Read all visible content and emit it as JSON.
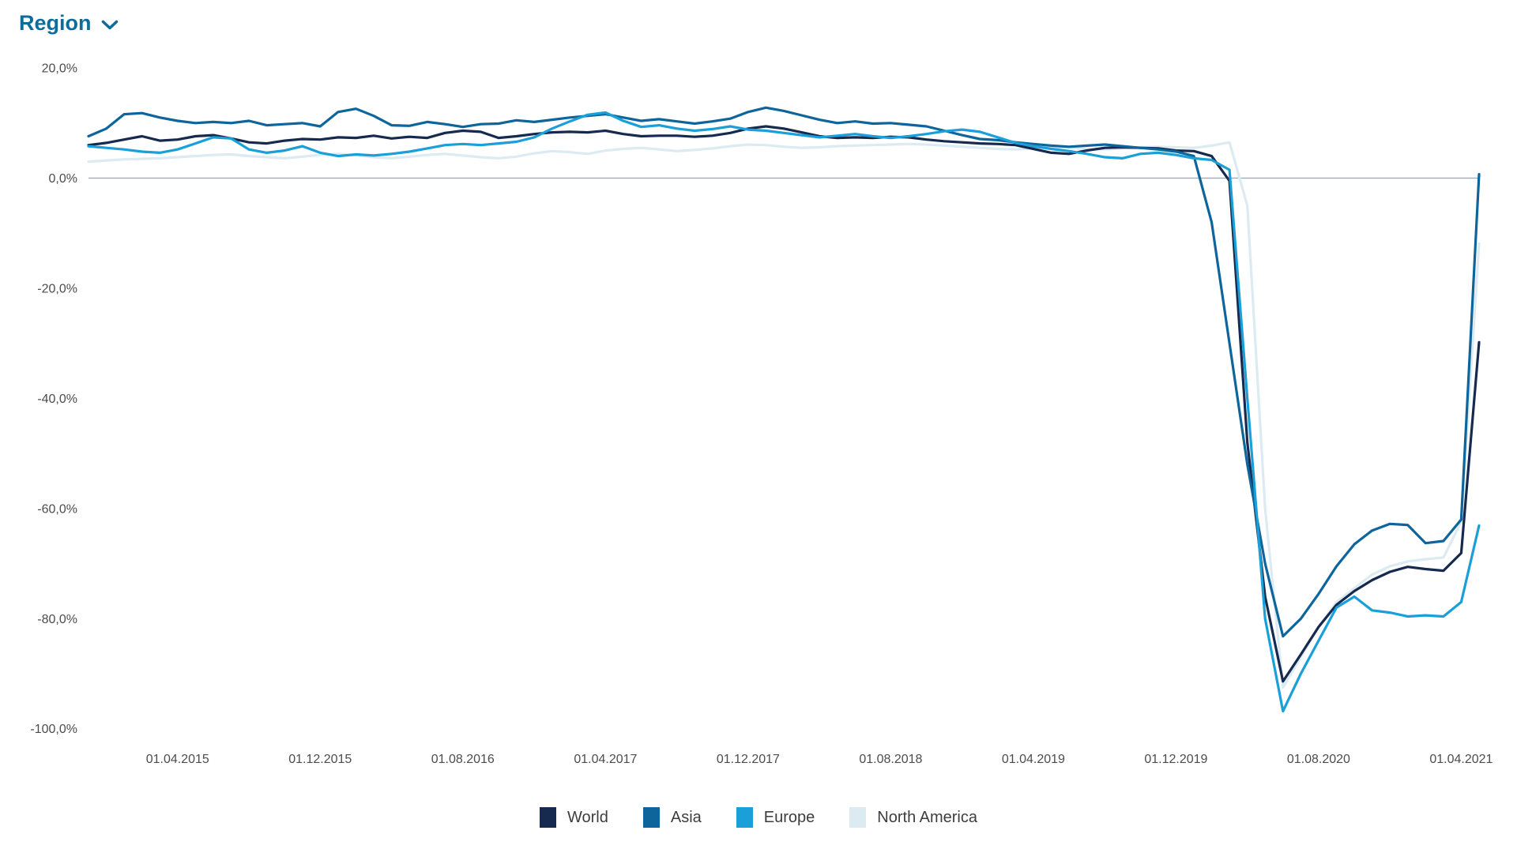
{
  "header": {
    "title": "Region",
    "title_color": "#0c6d9d",
    "chevron_icon": "chevron-down"
  },
  "chart_data": {
    "type": "line",
    "title": "",
    "xlabel": "",
    "ylabel": "",
    "ylim": [
      -100,
      20
    ],
    "grid": "zero-line-only",
    "zero_line_color": "#8ba7c7",
    "legend_position": "bottom-center",
    "value_format": "percent, German decimal comma",
    "y_ticks": [
      {
        "value": 20,
        "label": "20,0%"
      },
      {
        "value": 0,
        "label": "0,0%"
      },
      {
        "value": -20,
        "label": "-20,0%"
      },
      {
        "value": -40,
        "label": "-40,0%"
      },
      {
        "value": -60,
        "label": "-60,0%"
      },
      {
        "value": -80,
        "label": "-80,0%"
      },
      {
        "value": -100,
        "label": "-100,0%"
      }
    ],
    "x_ticks": [
      {
        "index": 5,
        "label": "01.04.2015"
      },
      {
        "index": 13,
        "label": "01.12.2015"
      },
      {
        "index": 21,
        "label": "01.08.2016"
      },
      {
        "index": 29,
        "label": "01.04.2017"
      },
      {
        "index": 37,
        "label": "01.12.2017"
      },
      {
        "index": 45,
        "label": "01.08.2018"
      },
      {
        "index": 53,
        "label": "01.04.2019"
      },
      {
        "index": 61,
        "label": "01.12.2019"
      },
      {
        "index": 69,
        "label": "01.08.2020"
      },
      {
        "index": 77,
        "label": "01.04.2021"
      }
    ],
    "months": [
      "2014-11",
      "2014-12",
      "2015-01",
      "2015-02",
      "2015-03",
      "2015-04",
      "2015-05",
      "2015-06",
      "2015-07",
      "2015-08",
      "2015-09",
      "2015-10",
      "2015-11",
      "2015-12",
      "2016-01",
      "2016-02",
      "2016-03",
      "2016-04",
      "2016-05",
      "2016-06",
      "2016-07",
      "2016-08",
      "2016-09",
      "2016-10",
      "2016-11",
      "2016-12",
      "2017-01",
      "2017-02",
      "2017-03",
      "2017-04",
      "2017-05",
      "2017-06",
      "2017-07",
      "2017-08",
      "2017-09",
      "2017-10",
      "2017-11",
      "2017-12",
      "2018-01",
      "2018-02",
      "2018-03",
      "2018-04",
      "2018-05",
      "2018-06",
      "2018-07",
      "2018-08",
      "2018-09",
      "2018-10",
      "2018-11",
      "2018-12",
      "2019-01",
      "2019-02",
      "2019-03",
      "2019-04",
      "2019-05",
      "2019-06",
      "2019-07",
      "2019-08",
      "2019-09",
      "2019-10",
      "2019-11",
      "2019-12",
      "2020-01",
      "2020-02",
      "2020-03",
      "2020-04",
      "2020-05",
      "2020-06",
      "2020-07",
      "2020-08",
      "2020-09",
      "2020-10",
      "2020-11",
      "2020-12",
      "2021-01",
      "2021-02",
      "2021-03",
      "2021-04",
      "2021-05"
    ],
    "series": [
      {
        "name": "World",
        "slug": "world",
        "color": "#16294e",
        "values": [
          6.0,
          6.4,
          7.0,
          7.6,
          6.8,
          7.0,
          7.6,
          7.8,
          7.2,
          6.5,
          6.3,
          6.8,
          7.1,
          7.0,
          7.4,
          7.3,
          7.7,
          7.2,
          7.5,
          7.3,
          8.2,
          8.6,
          8.4,
          7.3,
          7.6,
          8.0,
          8.3,
          8.4,
          8.3,
          8.6,
          8.0,
          7.6,
          7.7,
          7.7,
          7.5,
          7.7,
          8.2,
          9.0,
          9.4,
          9.0,
          8.3,
          7.6,
          7.3,
          7.4,
          7.3,
          7.5,
          7.4,
          7.0,
          6.7,
          6.5,
          6.3,
          6.2,
          6.0,
          5.3,
          4.6,
          4.4,
          5.0,
          5.5,
          5.6,
          5.5,
          5.4,
          5.0,
          4.9,
          4.0,
          -0.5,
          -48.0,
          -76.0,
          -91.4,
          -86.5,
          -81.5,
          -77.5,
          -75.0,
          -73.0,
          -71.5,
          -70.6,
          -71.0,
          -71.3,
          -68.1,
          -29.8
        ]
      },
      {
        "name": "Asia",
        "slug": "asia",
        "color": "#0d659c",
        "values": [
          7.6,
          9.0,
          11.6,
          11.8,
          11.0,
          10.4,
          10.0,
          10.2,
          10.0,
          10.4,
          9.6,
          9.8,
          10.0,
          9.4,
          12.0,
          12.6,
          11.3,
          9.6,
          9.5,
          10.2,
          9.8,
          9.3,
          9.8,
          9.9,
          10.5,
          10.2,
          10.6,
          11.0,
          11.3,
          11.6,
          11.0,
          10.4,
          10.7,
          10.3,
          9.9,
          10.3,
          10.8,
          12.0,
          12.8,
          12.2,
          11.4,
          10.6,
          10.0,
          10.3,
          9.9,
          10.0,
          9.7,
          9.4,
          8.6,
          7.8,
          7.1,
          6.9,
          6.5,
          6.2,
          5.9,
          5.7,
          5.9,
          6.1,
          5.8,
          5.5,
          5.2,
          4.8,
          4.0,
          -8.0,
          -30.0,
          -52.0,
          -70.0,
          -83.2,
          -80.0,
          -75.5,
          -70.5,
          -66.5,
          -64.0,
          -62.8,
          -63.0,
          -66.3,
          -65.9,
          -62.0,
          0.7
        ]
      },
      {
        "name": "Europe",
        "slug": "europe",
        "color": "#1b9fd8",
        "values": [
          5.8,
          5.5,
          5.2,
          4.8,
          4.6,
          5.2,
          6.3,
          7.4,
          7.2,
          5.2,
          4.6,
          5.0,
          5.8,
          4.6,
          4.0,
          4.3,
          4.1,
          4.4,
          4.8,
          5.4,
          6.0,
          6.2,
          6.0,
          6.3,
          6.6,
          7.4,
          9.0,
          10.3,
          11.5,
          11.9,
          10.4,
          9.3,
          9.6,
          9.0,
          8.6,
          8.9,
          9.4,
          8.8,
          8.6,
          8.2,
          7.8,
          7.4,
          7.7,
          8.0,
          7.6,
          7.3,
          7.6,
          8.0,
          8.5,
          8.8,
          8.4,
          7.4,
          6.4,
          5.8,
          5.3,
          4.9,
          4.4,
          3.8,
          3.6,
          4.4,
          4.6,
          4.2,
          3.6,
          3.3,
          1.5,
          -40.0,
          -80.0,
          -96.8,
          -90.0,
          -84.0,
          -78.0,
          -76.0,
          -78.5,
          -78.9,
          -79.6,
          -79.4,
          -79.6,
          -77.0,
          -63.1
        ]
      },
      {
        "name": "North America",
        "slug": "north-america",
        "color": "#dcebf2",
        "values": [
          3.0,
          3.2,
          3.4,
          3.5,
          3.6,
          3.8,
          4.0,
          4.2,
          4.3,
          4.0,
          3.8,
          3.6,
          3.9,
          4.2,
          4.4,
          4.1,
          3.8,
          3.6,
          3.9,
          4.2,
          4.4,
          4.1,
          3.8,
          3.6,
          3.9,
          4.5,
          4.9,
          4.7,
          4.4,
          5.0,
          5.3,
          5.5,
          5.2,
          4.9,
          5.1,
          5.4,
          5.8,
          6.1,
          6.0,
          5.7,
          5.5,
          5.6,
          5.8,
          5.9,
          6.0,
          6.1,
          6.2,
          6.1,
          5.9,
          5.7,
          5.5,
          5.3,
          5.2,
          5.4,
          5.6,
          5.5,
          5.3,
          5.2,
          5.4,
          5.6,
          5.7,
          5.6,
          5.5,
          5.9,
          6.5,
          -5.0,
          -60.0,
          -92.5,
          -87.0,
          -81.5,
          -77.0,
          -74.5,
          -72.0,
          -70.5,
          -69.6,
          -69.2,
          -68.9,
          -62.4,
          -11.9
        ]
      }
    ]
  },
  "legend": {
    "items": [
      {
        "label": "World",
        "color": "#16294e"
      },
      {
        "label": "Asia",
        "color": "#0d659c"
      },
      {
        "label": "Europe",
        "color": "#1b9fd8"
      },
      {
        "label": "North America",
        "color": "#dcebf2"
      }
    ]
  }
}
